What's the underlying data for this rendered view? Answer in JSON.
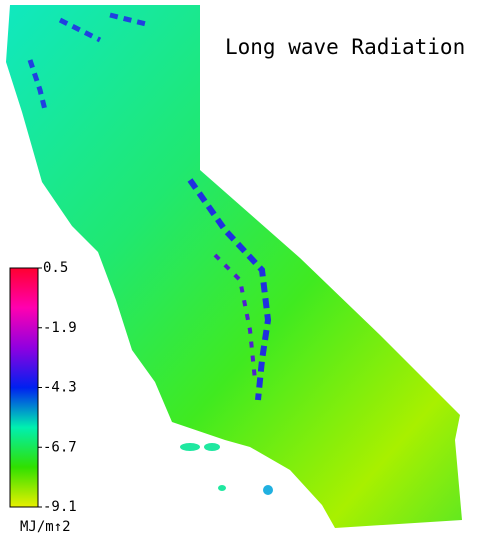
{
  "title": "Long wave Radiation",
  "colorbar": {
    "label": "MJ/m↑2",
    "lim": [
      -9.1,
      0.5
    ],
    "ticks": [
      0.5,
      -1.9,
      -4.3,
      -6.7,
      -9.1
    ],
    "colors": [
      "#e8f000",
      "#30e000",
      "#00f0b0",
      "#0020f0",
      "#9000e0",
      "#ff00b0",
      "#ff0030"
    ]
  }
}
